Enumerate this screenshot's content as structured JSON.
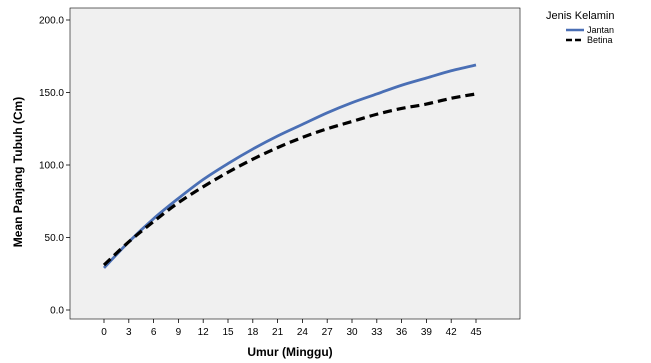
{
  "chart_data": {
    "type": "line",
    "xlabel": "Umur (Minggu)",
    "ylabel": "Mean Panjang Tubuh (Cm)",
    "x": [
      0,
      3,
      6,
      9,
      12,
      15,
      18,
      21,
      24,
      27,
      30,
      33,
      36,
      39,
      42,
      45
    ],
    "xticks": [
      "0",
      "3",
      "6",
      "9",
      "12",
      "15",
      "18",
      "21",
      "24",
      "27",
      "30",
      "33",
      "36",
      "39",
      "42",
      "45"
    ],
    "yticks": [
      "0.0",
      "50.0",
      "100.0",
      "150.0",
      "200.0"
    ],
    "ylim": [
      0,
      200
    ],
    "legend_title": "Jenis Kelamin",
    "legend_position": "top-right",
    "plot_background": "#f0f0f0",
    "series": [
      {
        "name": "Jantan",
        "color": "#4a6fb5",
        "style": "solid",
        "values": [
          29,
          47,
          63,
          77,
          90,
          101,
          111,
          120,
          128,
          136,
          143,
          149,
          155,
          160,
          165,
          169
        ]
      },
      {
        "name": "Betina",
        "color": "#000000",
        "style": "dashed",
        "values": [
          31,
          47,
          61,
          74,
          85,
          95,
          104,
          112,
          119,
          125,
          130,
          135,
          139,
          142,
          146,
          149
        ]
      }
    ]
  }
}
